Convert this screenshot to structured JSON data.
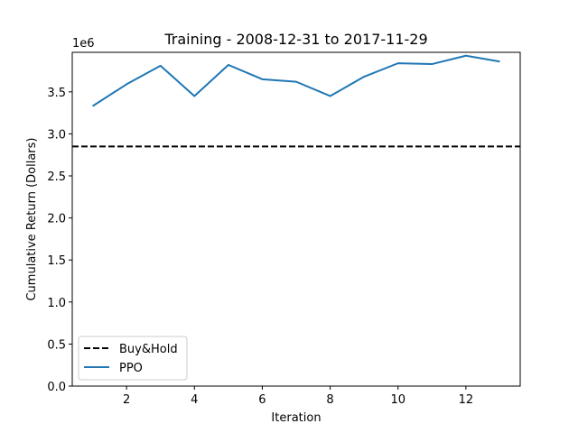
{
  "chart_data": {
    "type": "line",
    "title": "Training - 2008-12-31 to 2017-11-29",
    "xlabel": "Iteration",
    "ylabel": "Cumulative Return (Dollars)",
    "y_offset_label": "1e6",
    "xlim": [
      0.4,
      13.6
    ],
    "ylim": [
      0,
      3.97
    ],
    "xticks": [
      2,
      4,
      6,
      8,
      10,
      12
    ],
    "xtick_labels": [
      "2",
      "4",
      "6",
      "8",
      "10",
      "12"
    ],
    "yticks": [
      0,
      0.5,
      1.0,
      1.5,
      2.0,
      2.5,
      3.0,
      3.5
    ],
    "ytick_labels": [
      "0.0",
      "0.5",
      "1.0",
      "1.5",
      "2.0",
      "2.5",
      "3.0",
      "3.5"
    ],
    "grid": false,
    "legend": {
      "placement": "lower-left"
    },
    "series": [
      {
        "name": "Buy&Hold",
        "style": "dashed",
        "color": "#000000",
        "y_constant": 2.85
      },
      {
        "name": "PPO",
        "style": "solid",
        "color": "#1f77b4",
        "x": [
          1,
          2,
          3,
          4,
          5,
          6,
          7,
          8,
          9,
          10,
          11,
          12,
          13
        ],
        "values": [
          3.33,
          3.59,
          3.81,
          3.45,
          3.82,
          3.65,
          3.62,
          3.45,
          3.68,
          3.84,
          3.83,
          3.93,
          3.86
        ]
      }
    ]
  }
}
